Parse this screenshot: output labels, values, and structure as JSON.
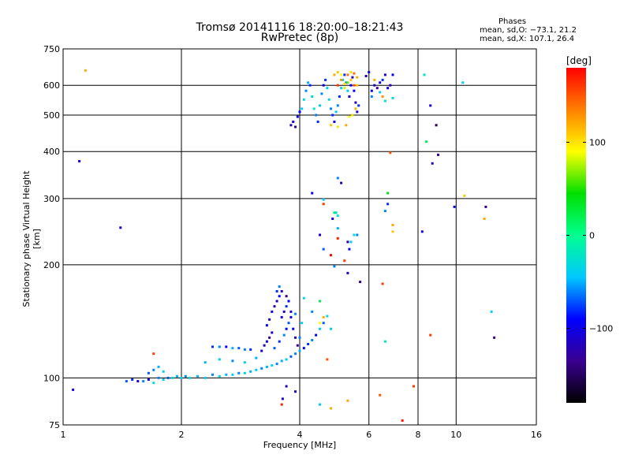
{
  "title": {
    "line1": "Tromsø 20141116 18:20:00–18:21:43",
    "line2": "RwPretec (8p)"
  },
  "phase_stats": {
    "title": "Phases",
    "o_mode": "mean, sd,O: −73.1, 21.2",
    "x_mode": "mean, sd,X: 107.1, 26.4"
  },
  "colorbar": {
    "unit": "[deg]",
    "ticks": [
      "100",
      "0",
      "−100"
    ],
    "tick_values": [
      100,
      0,
      -100
    ],
    "range": [
      -180,
      180
    ],
    "colors": [
      "#000000",
      "#3a0090",
      "#0000ff",
      "#00c8ff",
      "#00ff90",
      "#00e000",
      "#ffff00",
      "#ff8000",
      "#ff0000"
    ]
  },
  "chart_data": {
    "type": "scatter",
    "xlabel": "Frequency [MHz]",
    "ylabel": "Stationary phase Virtual Height [km]",
    "xscale": "log",
    "yscale": "log",
    "xlim": [
      1,
      16
    ],
    "ylim": [
      75,
      750
    ],
    "xticks": [
      {
        "value": 1,
        "label": "1"
      },
      {
        "value": 2,
        "label": "2"
      },
      {
        "value": 4,
        "label": "4"
      },
      {
        "value": 6,
        "label": "6"
      },
      {
        "value": 8,
        "label": "8"
      },
      {
        "value": 10,
        "label": "10"
      },
      {
        "value": 16,
        "label": "16"
      }
    ],
    "yticks": [
      {
        "value": 75,
        "label": "75"
      },
      {
        "value": 100,
        "label": "100"
      },
      {
        "value": 200,
        "label": "200"
      },
      {
        "value": 300,
        "label": "300"
      },
      {
        "value": 400,
        "label": "400"
      },
      {
        "value": 500,
        "label": "500"
      },
      {
        "value": 600,
        "label": "600"
      },
      {
        "value": 750,
        "label": "750"
      }
    ],
    "grid": true,
    "color_encoding": "phase [deg]",
    "points": [
      [
        1.06,
        93,
        -100
      ],
      [
        1.1,
        377,
        -110
      ],
      [
        1.14,
        657,
        120
      ],
      [
        1.4,
        251,
        -105
      ],
      [
        1.45,
        98,
        -70
      ],
      [
        1.5,
        99,
        -80
      ],
      [
        1.55,
        98,
        -110
      ],
      [
        1.6,
        98,
        -60
      ],
      [
        1.65,
        99,
        -90
      ],
      [
        1.7,
        97,
        -30
      ],
      [
        1.75,
        100,
        -60
      ],
      [
        1.8,
        99,
        -40
      ],
      [
        1.85,
        100,
        -70
      ],
      [
        1.9,
        100,
        -30
      ],
      [
        1.95,
        101,
        -50
      ],
      [
        2.0,
        100,
        -40
      ],
      [
        2.05,
        101,
        -60
      ],
      [
        2.1,
        100,
        -30
      ],
      [
        2.2,
        101,
        -50
      ],
      [
        2.3,
        100,
        -40
      ],
      [
        2.4,
        102,
        -60
      ],
      [
        2.5,
        101,
        -30
      ],
      [
        2.6,
        102,
        -50
      ],
      [
        2.7,
        102,
        -40
      ],
      [
        2.8,
        103,
        -60
      ],
      [
        2.9,
        103,
        -30
      ],
      [
        3.0,
        104,
        -50
      ],
      [
        3.1,
        105,
        -40
      ],
      [
        3.2,
        106,
        -60
      ],
      [
        3.3,
        107,
        -50
      ],
      [
        3.4,
        108,
        -40
      ],
      [
        3.5,
        109,
        -60
      ],
      [
        3.6,
        111,
        -50
      ],
      [
        3.7,
        112,
        -40
      ],
      [
        3.8,
        114,
        -70
      ],
      [
        3.9,
        116,
        -60
      ],
      [
        4.0,
        118,
        -50
      ],
      [
        4.1,
        120,
        -90
      ],
      [
        4.2,
        123,
        -80
      ],
      [
        4.3,
        126,
        -60
      ],
      [
        4.4,
        130,
        -90
      ],
      [
        4.5,
        135,
        -40
      ],
      [
        4.6,
        140,
        -70
      ],
      [
        4.7,
        146,
        -30
      ],
      [
        1.7,
        105,
        -60
      ],
      [
        1.75,
        107,
        -50
      ],
      [
        1.8,
        104,
        -40
      ],
      [
        1.65,
        103,
        -70
      ],
      [
        2.4,
        121,
        -80
      ],
      [
        2.5,
        121,
        -60
      ],
      [
        2.6,
        121,
        -90
      ],
      [
        2.7,
        120,
        -50
      ],
      [
        2.8,
        120,
        -70
      ],
      [
        2.9,
        119,
        -60
      ],
      [
        3.0,
        119,
        -80
      ],
      [
        2.3,
        110,
        -50
      ],
      [
        2.5,
        112,
        -40
      ],
      [
        2.7,
        111,
        -60
      ],
      [
        2.9,
        110,
        -30
      ],
      [
        3.1,
        113,
        -50
      ],
      [
        3.2,
        118,
        -110
      ],
      [
        3.25,
        122,
        -120
      ],
      [
        3.3,
        125,
        -100
      ],
      [
        3.35,
        128,
        -130
      ],
      [
        3.4,
        132,
        -110
      ],
      [
        3.3,
        138,
        -90
      ],
      [
        3.35,
        143,
        -120
      ],
      [
        3.4,
        150,
        -100
      ],
      [
        3.45,
        155,
        -130
      ],
      [
        3.5,
        160,
        -110
      ],
      [
        3.55,
        165,
        -90
      ],
      [
        3.6,
        170,
        -120
      ],
      [
        3.45,
        120,
        -70
      ],
      [
        3.55,
        125,
        -80
      ],
      [
        3.65,
        130,
        -60
      ],
      [
        3.7,
        135,
        -90
      ],
      [
        3.75,
        140,
        -70
      ],
      [
        3.8,
        145,
        -100
      ],
      [
        3.9,
        148,
        -60
      ],
      [
        3.7,
        155,
        -80
      ],
      [
        3.75,
        160,
        -90
      ],
      [
        3.5,
        170,
        -80
      ],
      [
        3.55,
        175,
        -60
      ],
      [
        3.6,
        145,
        -100
      ],
      [
        3.65,
        150,
        -120
      ],
      [
        3.7,
        165,
        -140
      ],
      [
        3.8,
        150,
        -110
      ],
      [
        3.85,
        135,
        -90
      ],
      [
        3.9,
        128,
        -120
      ],
      [
        3.95,
        122,
        -130
      ],
      [
        4.0,
        128,
        -60
      ],
      [
        4.05,
        140,
        -40
      ],
      [
        4.1,
        163,
        -30
      ],
      [
        4.3,
        150,
        -60
      ],
      [
        4.5,
        160,
        20
      ],
      [
        4.5,
        140,
        90
      ],
      [
        4.6,
        145,
        120
      ],
      [
        4.7,
        112,
        150
      ],
      [
        4.8,
        135,
        -40
      ],
      [
        4.5,
        85,
        -40
      ],
      [
        4.8,
        83,
        120
      ],
      [
        5.3,
        87,
        120
      ],
      [
        3.6,
        85,
        170
      ],
      [
        3.62,
        88,
        -110
      ],
      [
        3.7,
        95,
        -120
      ],
      [
        3.9,
        92,
        -110
      ],
      [
        3.8,
        470,
        -120
      ],
      [
        3.85,
        480,
        -110
      ],
      [
        3.9,
        465,
        -130
      ],
      [
        3.95,
        495,
        -100
      ],
      [
        4.0,
        510,
        -90
      ],
      [
        4.05,
        520,
        -40
      ],
      [
        4.1,
        550,
        -30
      ],
      [
        4.15,
        580,
        -60
      ],
      [
        4.2,
        610,
        -50
      ],
      [
        4.25,
        600,
        -80
      ],
      [
        4.3,
        560,
        -30
      ],
      [
        4.35,
        520,
        -20
      ],
      [
        4.4,
        500,
        -60
      ],
      [
        4.45,
        480,
        -80
      ],
      [
        4.5,
        530,
        -40
      ],
      [
        4.55,
        570,
        -60
      ],
      [
        4.6,
        600,
        -100
      ],
      [
        4.65,
        620,
        -80
      ],
      [
        4.7,
        590,
        -40
      ],
      [
        4.75,
        550,
        -30
      ],
      [
        4.8,
        520,
        -60
      ],
      [
        4.85,
        500,
        -80
      ],
      [
        4.9,
        480,
        -110
      ],
      [
        4.95,
        510,
        -40
      ],
      [
        5.0,
        530,
        -60
      ],
      [
        5.05,
        560,
        -80
      ],
      [
        5.1,
        590,
        -40
      ],
      [
        5.15,
        620,
        -30
      ],
      [
        5.2,
        640,
        -80
      ],
      [
        5.25,
        610,
        -60
      ],
      [
        5.3,
        580,
        -40
      ],
      [
        5.35,
        560,
        -110
      ],
      [
        5.4,
        600,
        -90
      ],
      [
        5.45,
        630,
        -120
      ],
      [
        5.5,
        580,
        -100
      ],
      [
        5.55,
        540,
        -120
      ],
      [
        5.6,
        510,
        -110
      ],
      [
        5.65,
        530,
        -80
      ],
      [
        4.9,
        640,
        120
      ],
      [
        5.0,
        650,
        110
      ],
      [
        5.1,
        620,
        130
      ],
      [
        5.2,
        605,
        100
      ],
      [
        5.3,
        640,
        140
      ],
      [
        5.4,
        620,
        110
      ],
      [
        5.5,
        600,
        150
      ],
      [
        5.6,
        630,
        120
      ],
      [
        5.2,
        590,
        80
      ],
      [
        5.3,
        610,
        60
      ],
      [
        5.4,
        650,
        100
      ],
      [
        5.5,
        645,
        140
      ],
      [
        5.6,
        600,
        110
      ],
      [
        5.0,
        600,
        160
      ],
      [
        5.1,
        640,
        90
      ],
      [
        5.45,
        500,
        100
      ],
      [
        5.55,
        520,
        120
      ],
      [
        5.35,
        495,
        90
      ],
      [
        4.8,
        470,
        110
      ],
      [
        5.0,
        465,
        100
      ],
      [
        5.25,
        470,
        120
      ],
      [
        5.9,
        635,
        -120
      ],
      [
        6.0,
        650,
        -100
      ],
      [
        6.1,
        580,
        -90
      ],
      [
        6.2,
        600,
        -110
      ],
      [
        6.3,
        590,
        -130
      ],
      [
        6.4,
        610,
        -100
      ],
      [
        6.5,
        620,
        -80
      ],
      [
        6.6,
        640,
        -110
      ],
      [
        6.7,
        590,
        -90
      ],
      [
        6.8,
        600,
        -120
      ],
      [
        6.9,
        640,
        -100
      ],
      [
        6.1,
        560,
        -60
      ],
      [
        6.2,
        620,
        120
      ],
      [
        6.4,
        575,
        -40
      ],
      [
        6.5,
        560,
        130
      ],
      [
        6.6,
        545,
        -20
      ],
      [
        6.8,
        397,
        150
      ],
      [
        6.9,
        555,
        -30
      ],
      [
        7.3,
        77,
        170
      ],
      [
        7.8,
        95,
        160
      ],
      [
        8.3,
        640,
        -20
      ],
      [
        8.4,
        425,
        20
      ],
      [
        8.6,
        530,
        -110
      ],
      [
        8.7,
        372,
        -120
      ],
      [
        8.9,
        470,
        -150
      ],
      [
        9.0,
        392,
        -130
      ],
      [
        8.2,
        245,
        -100
      ],
      [
        9.9,
        285,
        -100
      ],
      [
        10.4,
        610,
        -40
      ],
      [
        10.5,
        305,
        110
      ],
      [
        11.8,
        265,
        120
      ],
      [
        11.9,
        285,
        -140
      ],
      [
        12.3,
        150,
        -40
      ],
      [
        12.5,
        128,
        -140
      ],
      [
        8.6,
        130,
        160
      ],
      [
        4.3,
        310,
        -90
      ],
      [
        4.6,
        298,
        -40
      ],
      [
        4.6,
        290,
        160
      ],
      [
        4.85,
        265,
        -110
      ],
      [
        4.9,
        275,
        20
      ],
      [
        4.95,
        275,
        -30
      ],
      [
        5.0,
        270,
        -20
      ],
      [
        5.0,
        250,
        -50
      ],
      [
        5.0,
        235,
        170
      ],
      [
        5.0,
        340,
        -60
      ],
      [
        5.1,
        330,
        -120
      ],
      [
        5.3,
        230,
        -120
      ],
      [
        5.4,
        230,
        -40
      ],
      [
        5.35,
        220,
        -90
      ],
      [
        5.5,
        240,
        -30
      ],
      [
        4.5,
        240,
        -110
      ],
      [
        4.6,
        220,
        -70
      ],
      [
        4.9,
        198,
        -60
      ],
      [
        4.8,
        212,
        180
      ],
      [
        5.2,
        205,
        160
      ],
      [
        5.3,
        190,
        -120
      ],
      [
        5.6,
        240,
        -60
      ],
      [
        5.7,
        180,
        -140
      ],
      [
        6.5,
        178,
        160
      ],
      [
        6.6,
        125,
        -20
      ],
      [
        6.9,
        245,
        110
      ],
      [
        6.9,
        255,
        120
      ],
      [
        6.6,
        278,
        -60
      ],
      [
        6.7,
        290,
        -80
      ],
      [
        6.7,
        310,
        40
      ],
      [
        6.4,
        90,
        150
      ],
      [
        1.7,
        116,
        160
      ]
    ]
  }
}
